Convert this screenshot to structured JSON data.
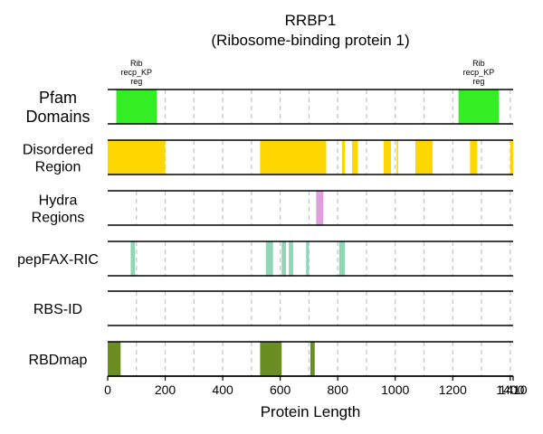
{
  "chart_data": {
    "type": "bar",
    "title": "RRBP1",
    "subtitle": "(Ribosome-binding protein 1)",
    "xlabel": "Protein Length",
    "xlim": [
      0,
      1410
    ],
    "xticks": [
      0,
      200,
      400,
      600,
      800,
      1000,
      1200,
      1400,
      1410
    ],
    "xtick_labels": [
      "0",
      "200",
      "400",
      "600",
      "800",
      "1000",
      "1200",
      "1400",
      "1410"
    ],
    "grid": "vertical dashed gridlines every 100 residues",
    "tracks": [
      {
        "label": "Pfam\nDomains",
        "color": "#33ee22",
        "segments": [
          {
            "start": 30,
            "end": 170,
            "label": "Rib\nrecp_KP\nreg"
          },
          {
            "start": 1220,
            "end": 1360,
            "label": "Rib\nrecp_KP\nreg"
          }
        ]
      },
      {
        "label": "Disordered\nRegion",
        "color": "#ffd700",
        "segments": [
          {
            "start": 0,
            "end": 200
          },
          {
            "start": 530,
            "end": 760
          },
          {
            "start": 815,
            "end": 825
          },
          {
            "start": 850,
            "end": 870
          },
          {
            "start": 960,
            "end": 985
          },
          {
            "start": 1005,
            "end": 1010
          },
          {
            "start": 1070,
            "end": 1130
          },
          {
            "start": 1260,
            "end": 1285
          },
          {
            "start": 1400,
            "end": 1410
          }
        ]
      },
      {
        "label": "Hydra\nRegions",
        "color": "#dda0dd",
        "segments": [
          {
            "start": 725,
            "end": 750
          }
        ]
      },
      {
        "label": "pepFAX-RIC",
        "color": "#90d5b5",
        "segments": [
          {
            "start": 80,
            "end": 95
          },
          {
            "start": 550,
            "end": 565
          },
          {
            "start": 565,
            "end": 575
          },
          {
            "start": 605,
            "end": 620
          },
          {
            "start": 630,
            "end": 645
          },
          {
            "start": 690,
            "end": 700
          },
          {
            "start": 805,
            "end": 825
          }
        ]
      },
      {
        "label": "RBS-ID",
        "color": "#90d5b5",
        "segments": []
      },
      {
        "label": "RBDmap",
        "color": "#6b8e23",
        "segments": [
          {
            "start": 0,
            "end": 45
          },
          {
            "start": 530,
            "end": 605
          },
          {
            "start": 705,
            "end": 720
          }
        ]
      }
    ]
  }
}
